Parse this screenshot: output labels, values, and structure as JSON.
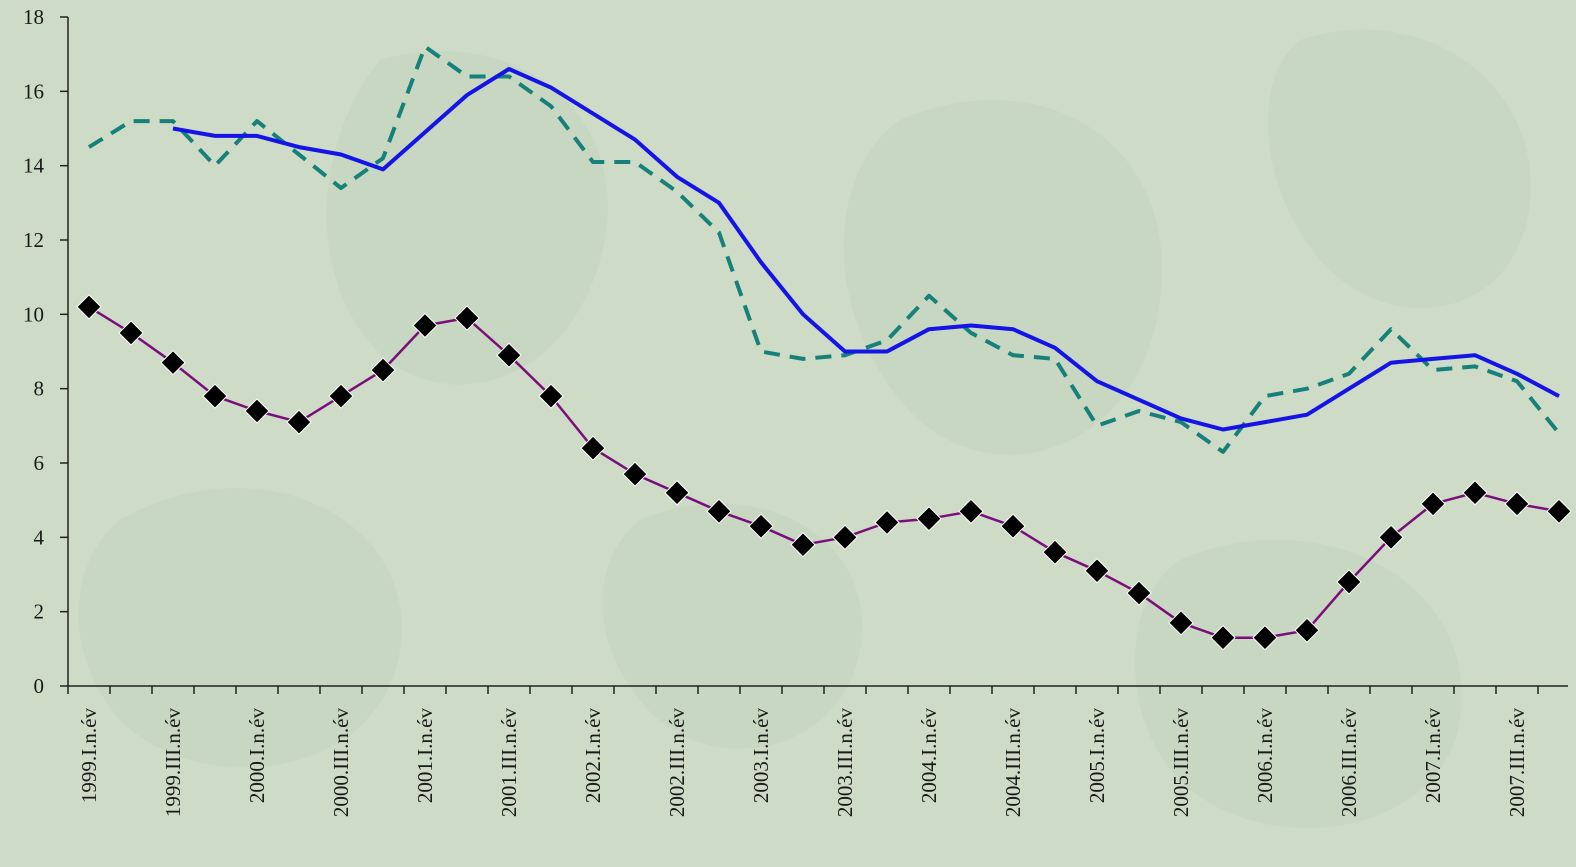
{
  "chart_data": {
    "type": "line",
    "x": [
      "1999.I.n.év",
      "1999.II.n.év",
      "1999.III.n.év",
      "1999.IV.n.év",
      "2000.I.n.év",
      "2000.II.n.év",
      "2000.III.n.év",
      "2000.IV.n.év",
      "2001.I.n.év",
      "2001.II.n.év",
      "2001.III.n.év",
      "2001.IV.n.év",
      "2002.I.n.év",
      "2002.II.n.év",
      "2002.III.n.év",
      "2002.IV.n.év",
      "2003.I.n.év",
      "2003.II.n.év",
      "2003.III.n.év",
      "2003.IV.n.év",
      "2004.I.n.év",
      "2004.II.n.év",
      "2004.III.n.év",
      "2004.IV.n.év",
      "2005.I.n.év",
      "2005.II.n.év",
      "2005.III.n.év",
      "2005.IV.n.év",
      "2006.I.n.év",
      "2006.II.n.év",
      "2006.III.n.év",
      "2006.IV.n.év",
      "2007.I.n.év",
      "2007.II.n.év",
      "2007.III.n.év",
      "2007.IV.n.év"
    ],
    "x_tick_labels": [
      "1999.I.n.év",
      "1999.III.n.év",
      "2000.I.n.év",
      "2000.III.n.év",
      "2001.I.n.év",
      "2001.III.n.év",
      "2002.I.n.év",
      "2002.III.n.év",
      "2003.I.n.év",
      "2003.III.n.év",
      "2004.I.n.év",
      "2004.III.n.év",
      "2005.I.n.év",
      "2005.III.n.év",
      "2006.I.n.év",
      "2006.III.n.év",
      "2007.I.n.év",
      "2007.III.n.év"
    ],
    "y_tick_labels": [
      "0",
      "2",
      "4",
      "6",
      "8",
      "10",
      "12",
      "14",
      "16",
      "18"
    ],
    "ylim": [
      0,
      18
    ],
    "grid": false,
    "series": [
      {
        "style": "dashed",
        "color": "#16807a",
        "values": [
          14.5,
          15.2,
          15.2,
          14.0,
          15.2,
          14.3,
          13.4,
          14.2,
          17.2,
          16.4,
          16.4,
          15.6,
          14.1,
          14.1,
          13.3,
          12.2,
          9.0,
          8.8,
          8.9,
          9.3,
          10.5,
          9.5,
          8.9,
          8.8,
          7.0,
          7.4,
          7.1,
          6.3,
          7.8,
          8.0,
          8.4,
          9.6,
          8.5,
          8.6,
          8.2,
          6.8
        ]
      },
      {
        "style": "solid",
        "color": "#1414e6",
        "values": [
          null,
          null,
          15.0,
          14.8,
          14.8,
          14.5,
          14.3,
          13.9,
          14.9,
          15.9,
          16.6,
          16.1,
          15.4,
          14.7,
          13.7,
          13.0,
          11.4,
          10.0,
          9.0,
          9.0,
          9.6,
          9.7,
          9.6,
          9.1,
          8.2,
          7.7,
          7.2,
          6.9,
          7.1,
          7.3,
          8.0,
          8.7,
          8.8,
          8.9,
          8.4,
          7.8
        ]
      },
      {
        "style": "solid-markers",
        "color": "#7a0e7a",
        "marker": "diamond",
        "marker_color": "#000000",
        "values": [
          10.2,
          9.5,
          8.7,
          7.8,
          7.4,
          7.1,
          7.8,
          8.5,
          9.7,
          9.9,
          8.9,
          7.8,
          6.4,
          5.7,
          5.2,
          4.7,
          4.3,
          3.8,
          4.0,
          4.4,
          4.5,
          4.7,
          4.3,
          3.6,
          3.1,
          2.5,
          1.7,
          1.3,
          1.3,
          1.5,
          2.8,
          4.0,
          4.9,
          5.2,
          4.9,
          4.7
        ]
      }
    ]
  }
}
